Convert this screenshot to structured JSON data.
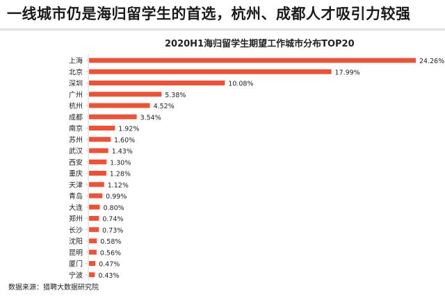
{
  "headline": "一线城市仍是海归留学生的首选，杭州、成都人才吸引力较强",
  "source": "数据来源：猎聘大数据研究院",
  "colors": {
    "bar": "#e8533a",
    "axis": "#d0d0d0",
    "text": "#222222"
  },
  "chart_data": {
    "type": "bar",
    "orientation": "horizontal",
    "title": "2020H1海归留学生期望工作城市分布TOP20",
    "categories": [
      "上海",
      "北京",
      "深圳",
      "广州",
      "杭州",
      "成都",
      "南京",
      "苏州",
      "武汉",
      "西安",
      "重庆",
      "天津",
      "青岛",
      "大连",
      "郑州",
      "长沙",
      "沈阳",
      "昆明",
      "厦门",
      "宁波"
    ],
    "values": [
      24.26,
      17.99,
      10.08,
      5.38,
      4.52,
      3.54,
      1.92,
      1.6,
      1.43,
      1.3,
      1.28,
      1.12,
      0.99,
      0.8,
      0.74,
      0.73,
      0.58,
      0.56,
      0.47,
      0.43
    ],
    "value_labels": [
      "24.26%",
      "17.99%",
      "10.08%",
      "5.38%",
      "4.52%",
      "3.54%",
      "1.92%",
      "1.60%",
      "1.43%",
      "1.30%",
      "1.28%",
      "1.12%",
      "0.99%",
      "0.80%",
      "0.74%",
      "0.73%",
      "0.58%",
      "0.56%",
      "0.47%",
      "0.43%"
    ],
    "unit": "%",
    "xlim": [
      0,
      24.26
    ],
    "grid": false,
    "legend": "none"
  }
}
